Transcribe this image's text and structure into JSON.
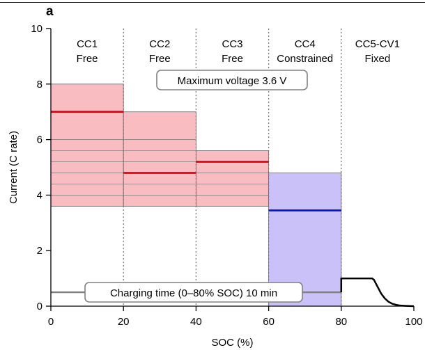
{
  "panel_label": "a",
  "chart_data": {
    "type": "area",
    "xlabel": "SOC (%)",
    "ylabel": "Current (C rate)",
    "xlim": [
      0,
      100
    ],
    "ylim": [
      0,
      10
    ],
    "xticks": [
      0,
      20,
      40,
      60,
      80,
      100
    ],
    "yticks": [
      0,
      2,
      4,
      6,
      8,
      10
    ],
    "grid": false,
    "phase_boundaries": [
      20,
      40,
      60,
      80
    ],
    "phases": [
      {
        "name": "CC1",
        "mode": "Free",
        "x_range": [
          0,
          20
        ]
      },
      {
        "name": "CC2",
        "mode": "Free",
        "x_range": [
          20,
          40
        ]
      },
      {
        "name": "CC3",
        "mode": "Free",
        "x_range": [
          40,
          60
        ]
      },
      {
        "name": "CC4",
        "mode": "Constrained",
        "x_range": [
          60,
          80
        ]
      },
      {
        "name": "CC5-CV1",
        "mode": "Fixed",
        "x_range": [
          80,
          100
        ]
      }
    ],
    "colors": {
      "free_region": "#f9bcc0",
      "constrained_region": "#c9c1f7",
      "selected_free": "#e3000f",
      "selected_constrained": "#0018c8",
      "charging_time_line": "#808080",
      "cc5_cv1_line": "#000000"
    },
    "free_regions": [
      {
        "x": [
          0,
          20
        ],
        "y": [
          3.6,
          8.0
        ]
      },
      {
        "x": [
          20,
          40
        ],
        "y": [
          3.6,
          7.0
        ]
      },
      {
        "x": [
          40,
          60
        ],
        "y": [
          3.6,
          5.6
        ]
      }
    ],
    "constrained_region": {
      "x": [
        60,
        80
      ],
      "y": [
        0,
        4.8
      ]
    },
    "candidate_levels": [
      4.0,
      4.4,
      4.8,
      5.2,
      5.6,
      6.0
    ],
    "selected_current": [
      {
        "x": [
          0,
          20
        ],
        "y": 7.0
      },
      {
        "x": [
          20,
          40
        ],
        "y": 4.8
      },
      {
        "x": [
          40,
          60
        ],
        "y": 5.2
      },
      {
        "x": [
          60,
          80
        ],
        "y": 3.45
      }
    ],
    "cc5_cv1_curve": [
      [
        80,
        0.5
      ],
      [
        80,
        1.0
      ],
      [
        88.5,
        1.0
      ],
      [
        89,
        0.95
      ],
      [
        90,
        0.7
      ],
      [
        91,
        0.45
      ],
      [
        92,
        0.28
      ],
      [
        93,
        0.16
      ],
      [
        94,
        0.09
      ],
      [
        95,
        0.05
      ],
      [
        96,
        0.025
      ],
      [
        98,
        0.01
      ],
      [
        100,
        0.0
      ]
    ],
    "charging_time_line": {
      "x": [
        0,
        80
      ],
      "y": 0.5
    },
    "annotations": {
      "max_voltage": "Maximum voltage 3.6 V",
      "charging_time": "Charging time (0–80% SOC) 10 min"
    }
  }
}
